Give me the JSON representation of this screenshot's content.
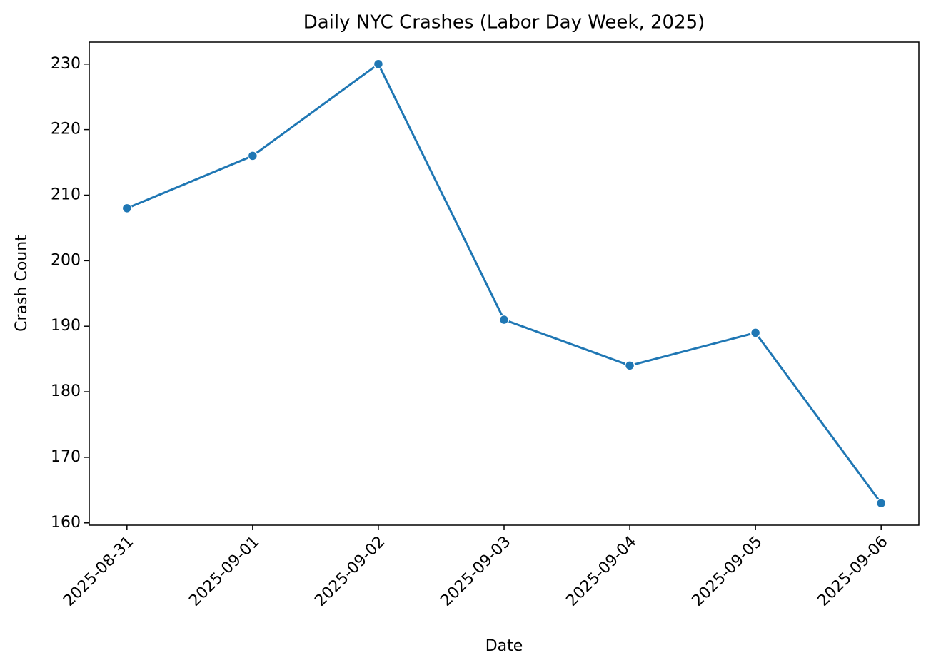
{
  "chart_data": {
    "type": "line",
    "title": "Daily NYC Crashes (Labor Day Week, 2025)",
    "x_label": "Date",
    "y_label": "Crash Count",
    "categories": [
      "2025-08-31",
      "2025-09-01",
      "2025-09-02",
      "2025-09-03",
      "2025-09-04",
      "2025-09-05",
      "2025-09-06"
    ],
    "values": [
      208,
      216,
      230,
      191,
      184,
      189,
      163
    ],
    "color": "#1f77b4",
    "ylim": [
      159.65,
      233.35
    ],
    "yticks": [
      160,
      170,
      180,
      190,
      200,
      210,
      220,
      230
    ],
    "grid": false
  }
}
